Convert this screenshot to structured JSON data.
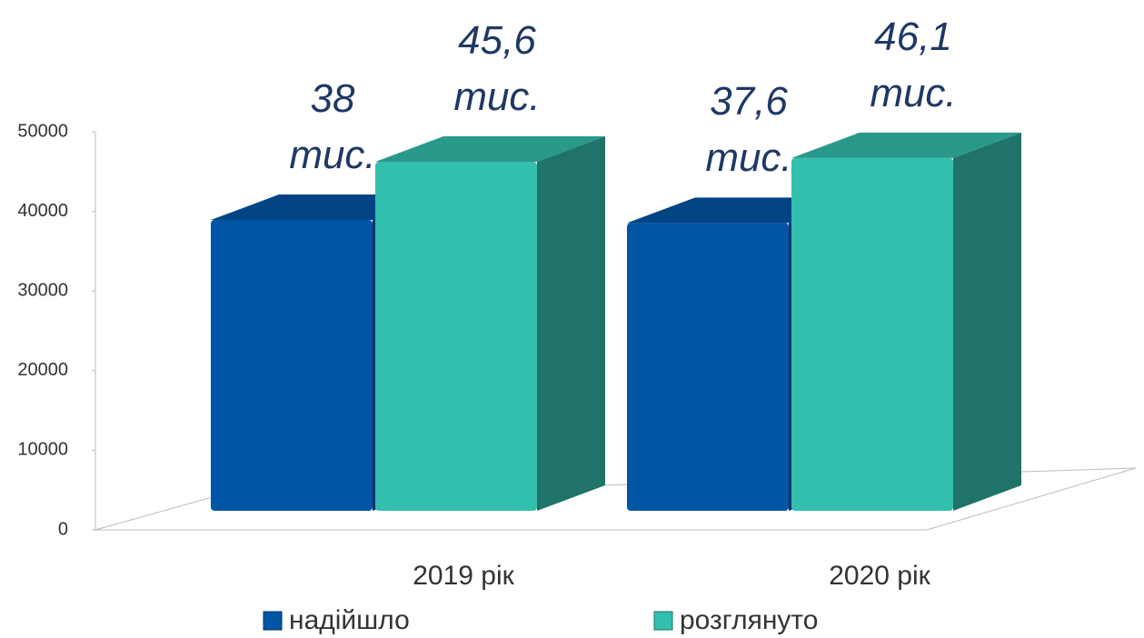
{
  "chart_data": {
    "type": "bar3d",
    "categories": [
      "2019 рік",
      "2020 рік"
    ],
    "series": [
      {
        "name": "надійшло",
        "color": "#0055a5",
        "values": [
          38000,
          37600
        ],
        "value_labels": [
          "38 тис.",
          "37,6 тис."
        ]
      },
      {
        "name": "розглянуто",
        "color": "#33bfae",
        "values": [
          45600,
          46100
        ],
        "value_labels": [
          "45,6 тис.",
          "46,1 тис."
        ]
      }
    ],
    "ylim": [
      0,
      50000
    ],
    "yticks": [
      0,
      10000,
      20000,
      30000,
      40000,
      50000
    ],
    "legend": "bottom"
  }
}
